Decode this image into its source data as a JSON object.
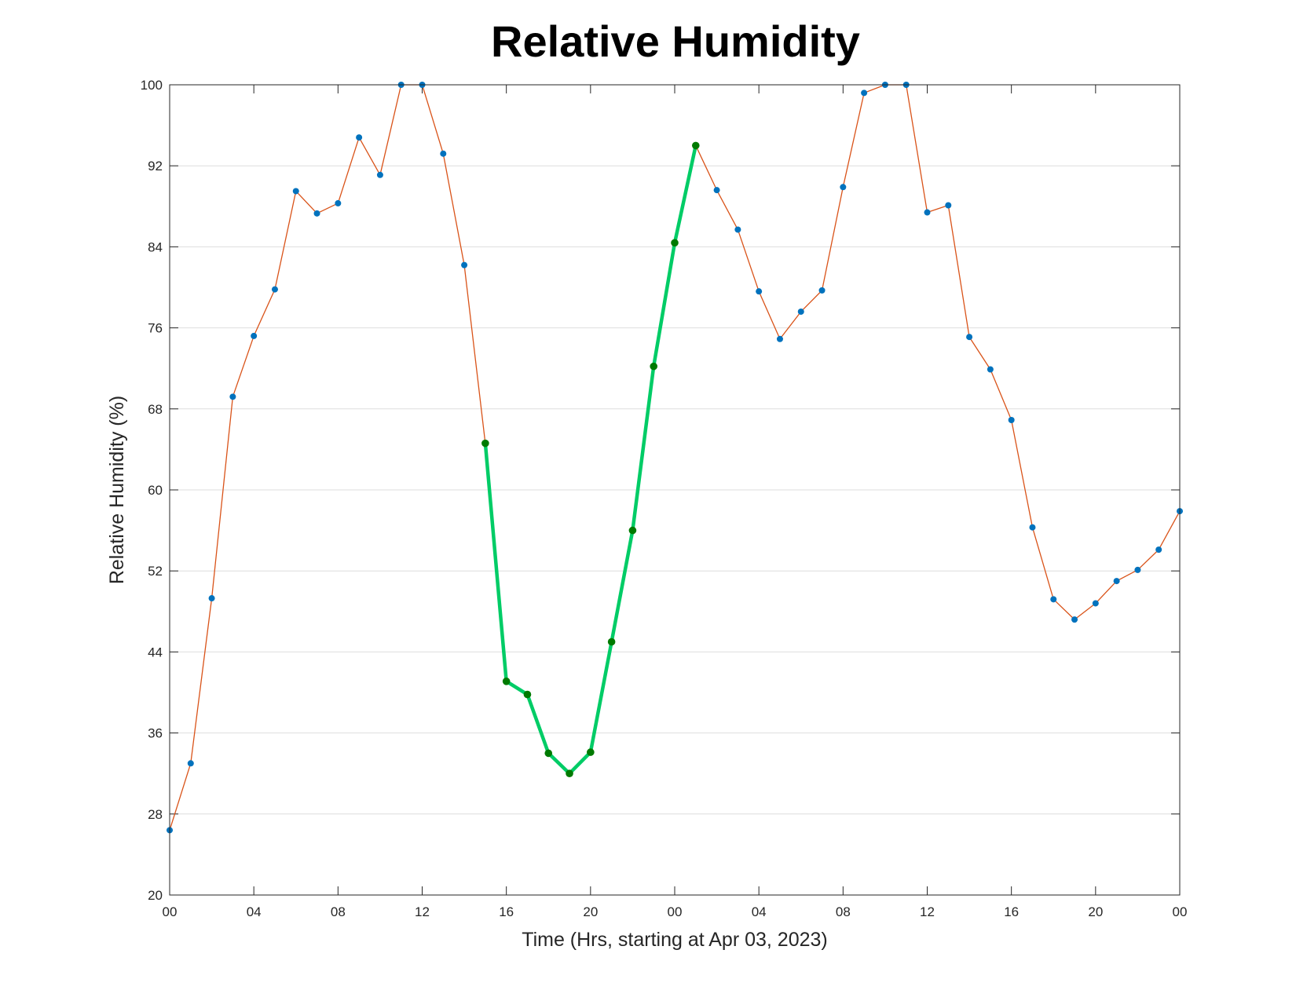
{
  "chart_data": {
    "type": "line",
    "title": "Relative Humidity",
    "xlabel": "Time (Hrs, starting at Apr 03, 2023)",
    "ylabel": "Relative Humidity (%)",
    "x_unit": "hours",
    "xlim": [
      0,
      48
    ],
    "ylim": [
      20,
      100
    ],
    "x_ticks": [
      0,
      4,
      8,
      12,
      16,
      20,
      24,
      28,
      32,
      36,
      40,
      44,
      48
    ],
    "x_tick_labels": [
      "00",
      "04",
      "08",
      "12",
      "16",
      "20",
      "00",
      "04",
      "08",
      "12",
      "16",
      "20",
      "00"
    ],
    "y_ticks": [
      20,
      28,
      36,
      44,
      52,
      60,
      68,
      76,
      84,
      92,
      100
    ],
    "y_tick_labels": [
      "20",
      "28",
      "36",
      "44",
      "52",
      "60",
      "68",
      "76",
      "84",
      "92",
      "100"
    ],
    "grid": "horizontal",
    "x": [
      0,
      1,
      2,
      3,
      4,
      5,
      6,
      7,
      8,
      9,
      10,
      11,
      12,
      13,
      14,
      15,
      16,
      17,
      18,
      19,
      20,
      21,
      22,
      23,
      24,
      25,
      26,
      27,
      28,
      29,
      30,
      31,
      32,
      33,
      34,
      35,
      36,
      37,
      38,
      39,
      40,
      41,
      42,
      43,
      44,
      45,
      46,
      47,
      48
    ],
    "series": [
      {
        "values": [
          26.4,
          33.0,
          49.3,
          69.2,
          75.2,
          79.8,
          89.5,
          87.3,
          88.3,
          94.8,
          91.1,
          100.0,
          100.0,
          93.2,
          82.2,
          64.6,
          41.1,
          39.8,
          34.0,
          32.0,
          34.1,
          45.0,
          56.0,
          72.2,
          84.4,
          94.0,
          89.6,
          85.7,
          79.6,
          74.9,
          77.6,
          79.7,
          89.9,
          99.2,
          100.0,
          100.0,
          87.4,
          88.1,
          75.1,
          71.9,
          66.9,
          56.3,
          49.2,
          47.2,
          48.8,
          51.0,
          52.1,
          54.1,
          57.9
        ],
        "color": "#D95319",
        "marker_color": "#0072BD"
      },
      {
        "x": [
          15,
          16,
          17,
          18,
          19,
          20,
          21,
          22,
          23,
          24,
          25
        ],
        "values": [
          64.6,
          41.1,
          39.8,
          34.0,
          32.0,
          34.1,
          45.0,
          56.0,
          72.2,
          84.4,
          94.0
        ],
        "color": "#00CC66",
        "marker_color": "#007A00"
      }
    ]
  }
}
